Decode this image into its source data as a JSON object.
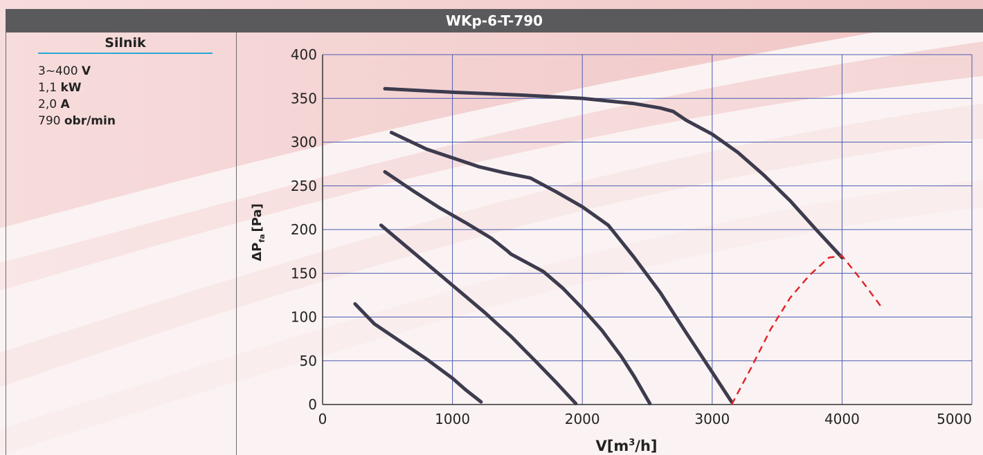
{
  "header": {
    "title": "WKp-6-T-790"
  },
  "motor": {
    "heading": "Silnik",
    "specs": [
      {
        "value": "3~400",
        "unit": "V"
      },
      {
        "value": "1,1",
        "unit": "kW"
      },
      {
        "value": "2,0",
        "unit": "A"
      },
      {
        "value": "790",
        "unit": "obr/min"
      }
    ]
  },
  "chart_data": {
    "type": "line",
    "xlabel_main": "V[m",
    "xlabel_sup": "3",
    "xlabel_end": "/h]",
    "ylabel_delta": "ΔP",
    "ylabel_sub": "fa",
    "ylabel_end": "[Pa]",
    "xlim": [
      0,
      5000
    ],
    "ylim": [
      0,
      400
    ],
    "xticks": [
      0,
      1000,
      2000,
      3000,
      4000,
      5000
    ],
    "yticks": [
      0,
      50,
      100,
      150,
      200,
      250,
      300,
      350,
      400
    ],
    "grid": true,
    "colors": {
      "curve": "#3d3b4e",
      "limit": "#e0262b",
      "grid": "#4a5bb0"
    },
    "series": [
      {
        "points": [
          [
            250,
            115
          ],
          [
            400,
            92
          ],
          [
            600,
            72
          ],
          [
            800,
            52
          ],
          [
            1000,
            30
          ],
          [
            1100,
            17
          ],
          [
            1220,
            3
          ]
        ]
      },
      {
        "points": [
          [
            450,
            205
          ],
          [
            650,
            180
          ],
          [
            850,
            155
          ],
          [
            1050,
            130
          ],
          [
            1250,
            105
          ],
          [
            1450,
            78
          ],
          [
            1650,
            48
          ],
          [
            1800,
            25
          ],
          [
            1950,
            1
          ]
        ]
      },
      {
        "points": [
          [
            480,
            266
          ],
          [
            700,
            244
          ],
          [
            900,
            225
          ],
          [
            1100,
            208
          ],
          [
            1300,
            190
          ],
          [
            1420,
            176
          ],
          [
            1450,
            172
          ],
          [
            1550,
            164
          ],
          [
            1700,
            152
          ],
          [
            1850,
            133
          ],
          [
            2000,
            110
          ],
          [
            2150,
            85
          ],
          [
            2300,
            55
          ],
          [
            2400,
            32
          ],
          [
            2520,
            1
          ]
        ]
      },
      {
        "points": [
          [
            530,
            311
          ],
          [
            800,
            292
          ],
          [
            1000,
            282
          ],
          [
            1200,
            272
          ],
          [
            1400,
            265
          ],
          [
            1600,
            259
          ],
          [
            1800,
            243
          ],
          [
            2000,
            226
          ],
          [
            2200,
            205
          ],
          [
            2400,
            168
          ],
          [
            2600,
            128
          ],
          [
            2800,
            82
          ],
          [
            3000,
            37
          ],
          [
            3150,
            3
          ]
        ]
      },
      {
        "points": [
          [
            480,
            361
          ],
          [
            1000,
            357
          ],
          [
            1500,
            354
          ],
          [
            2000,
            350
          ],
          [
            2400,
            344
          ],
          [
            2600,
            339
          ],
          [
            2700,
            335
          ],
          [
            2800,
            325
          ],
          [
            3000,
            309
          ],
          [
            3200,
            288
          ],
          [
            3400,
            262
          ],
          [
            3600,
            233
          ],
          [
            3800,
            200
          ],
          [
            4000,
            168
          ]
        ]
      }
    ],
    "limit_line": {
      "points": [
        [
          3150,
          0
        ],
        [
          3300,
          42
        ],
        [
          3450,
          86
        ],
        [
          3600,
          122
        ],
        [
          3750,
          148
        ],
        [
          3900,
          168
        ],
        [
          4000,
          170
        ],
        [
          4150,
          142
        ],
        [
          4300,
          112
        ]
      ]
    }
  }
}
